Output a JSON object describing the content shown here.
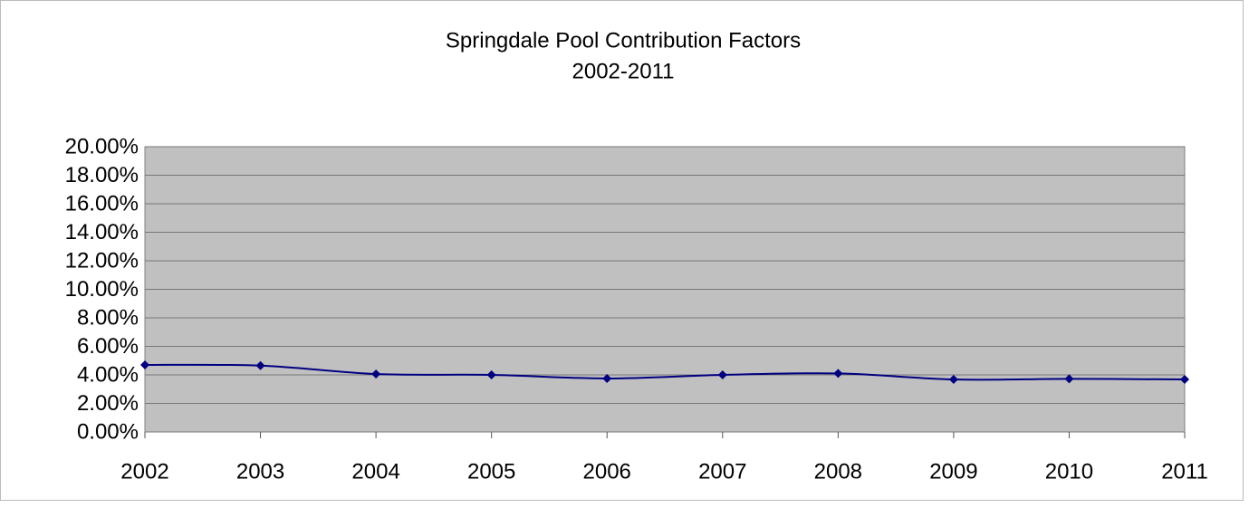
{
  "chart_data": {
    "type": "line",
    "title": "Springdale Pool Contribution Factors",
    "subtitle": "2002-2011",
    "categories": [
      "2002",
      "2003",
      "2004",
      "2005",
      "2006",
      "2007",
      "2008",
      "2009",
      "2010",
      "2011"
    ],
    "series": [
      {
        "color": "#000080",
        "values": [
          4.7,
          4.65,
          4.06,
          4.0,
          3.75,
          4.0,
          4.1,
          3.68,
          3.72,
          3.68
        ]
      }
    ],
    "ylim": [
      0,
      20
    ],
    "yticks": [
      {
        "value": 0,
        "label": "0.00%"
      },
      {
        "value": 2,
        "label": "2.00%"
      },
      {
        "value": 4,
        "label": "4.00%"
      },
      {
        "value": 6,
        "label": "6.00%"
      },
      {
        "value": 8,
        "label": "8.00%"
      },
      {
        "value": 10,
        "label": "10.00%"
      },
      {
        "value": 12,
        "label": "12.00%"
      },
      {
        "value": 14,
        "label": "14.00%"
      },
      {
        "value": 16,
        "label": "16.00%"
      },
      {
        "value": 18,
        "label": "18.00%"
      },
      {
        "value": 20,
        "label": "20.00%"
      }
    ],
    "grid": true,
    "plot_background": "#c0c0c0"
  }
}
